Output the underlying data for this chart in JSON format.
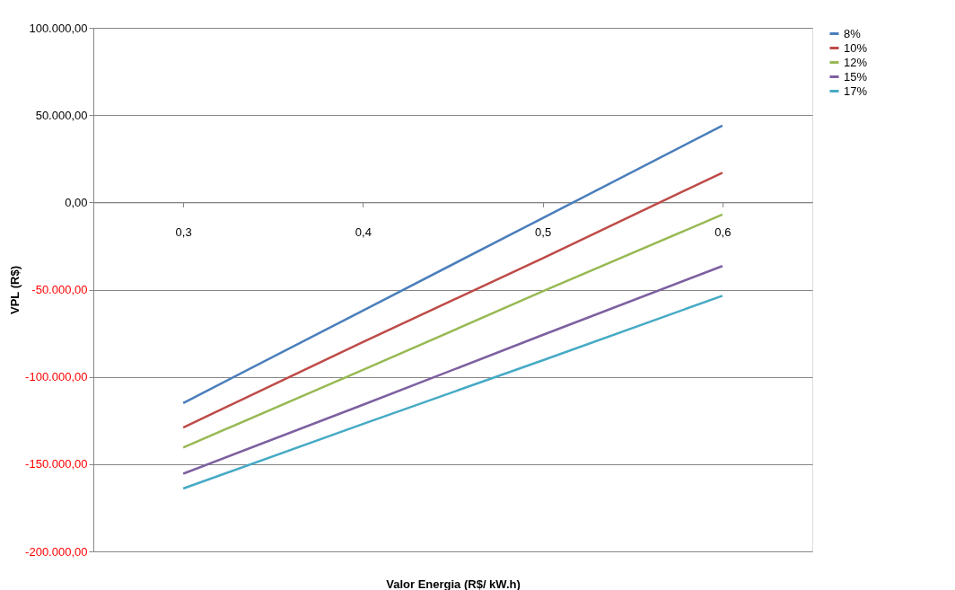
{
  "chart_data": {
    "type": "line",
    "xlabel": "Valor Energia (R$/ kW.h)",
    "ylabel": "VPL (R$)",
    "categories": [
      "0,3",
      "0,4",
      "0,5",
      "0,6"
    ],
    "series": [
      {
        "name": "8%",
        "color": "#4a7ebb",
        "values": [
          -115000,
          -62000,
          -9000,
          44000
        ]
      },
      {
        "name": "10%",
        "color": "#be4b48",
        "values": [
          -129000,
          -80000,
          -32000,
          17000
        ]
      },
      {
        "name": "12%",
        "color": "#98b954",
        "values": [
          -140500,
          -96000,
          -51000,
          -7000
        ]
      },
      {
        "name": "15%",
        "color": "#7d60a0",
        "values": [
          -155500,
          -116000,
          -76000,
          -36500
        ]
      },
      {
        "name": "17%",
        "color": "#46aac5",
        "values": [
          -164000,
          -127000,
          -90500,
          -53500
        ]
      }
    ],
    "ylim": [
      -200000,
      100000
    ],
    "yticks": [
      {
        "value": -200000,
        "label": "-200.000,00"
      },
      {
        "value": -150000,
        "label": "-150.000,00"
      },
      {
        "value": -100000,
        "label": "-100.000,00"
      },
      {
        "value": -50000,
        "label": "-50.000,00"
      },
      {
        "value": 0,
        "label": "0,00"
      },
      {
        "value": 50000,
        "label": "50.000,00"
      },
      {
        "value": 100000,
        "label": "100.000,00"
      }
    ],
    "grid": "y",
    "legend": "right",
    "marker": "none",
    "line_style": "solid"
  }
}
